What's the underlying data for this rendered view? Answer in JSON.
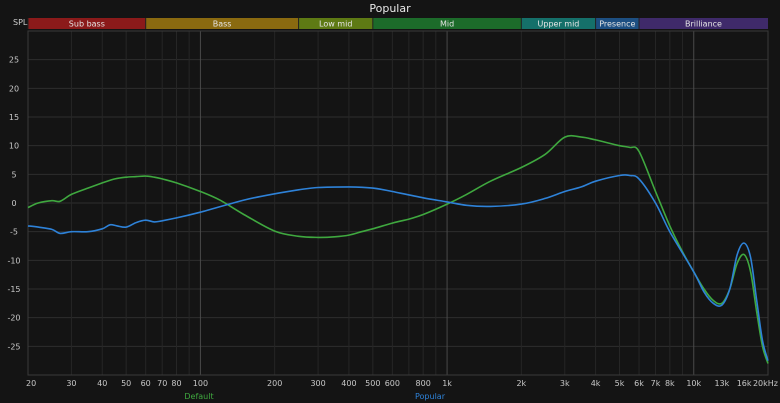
{
  "chart_data": {
    "type": "line",
    "title": "Popular",
    "ylabel": "SPL",
    "xscale": "log",
    "xlim": [
      20,
      20000
    ],
    "ylim": [
      -30,
      30
    ],
    "grid": true,
    "y_ticks": [
      25,
      20,
      15,
      10,
      5,
      0,
      -5,
      -10,
      -15,
      -20,
      -25
    ],
    "x_ticks": [
      {
        "value": 20,
        "label": "20"
      },
      {
        "value": 30,
        "label": "30"
      },
      {
        "value": 40,
        "label": "40"
      },
      {
        "value": 50,
        "label": "50"
      },
      {
        "value": 60,
        "label": "60"
      },
      {
        "value": 70,
        "label": "70"
      },
      {
        "value": 80,
        "label": "80"
      },
      {
        "value": 100,
        "label": "100"
      },
      {
        "value": 200,
        "label": "200"
      },
      {
        "value": 300,
        "label": "300"
      },
      {
        "value": 400,
        "label": "400"
      },
      {
        "value": 500,
        "label": "500"
      },
      {
        "value": 600,
        "label": "600"
      },
      {
        "value": 800,
        "label": "800"
      },
      {
        "value": 1000,
        "label": "1k"
      },
      {
        "value": 2000,
        "label": "2k"
      },
      {
        "value": 3000,
        "label": "3k"
      },
      {
        "value": 4000,
        "label": "4k"
      },
      {
        "value": 5000,
        "label": "5k"
      },
      {
        "value": 6000,
        "label": "6k"
      },
      {
        "value": 7000,
        "label": "7k"
      },
      {
        "value": 8000,
        "label": "8k"
      },
      {
        "value": 10000,
        "label": "10k"
      },
      {
        "value": 13000,
        "label": "13k",
        "dim": true
      },
      {
        "value": 16000,
        "label": "16k",
        "dim": true
      },
      {
        "value": 20000,
        "label": "20kHz"
      }
    ],
    "bands": [
      {
        "label": "Sub bass",
        "from": 20,
        "to": 60,
        "color": "#8b1a1a"
      },
      {
        "label": "Bass",
        "from": 60,
        "to": 250,
        "color": "#8a6a10"
      },
      {
        "label": "Low mid",
        "from": 250,
        "to": 500,
        "color": "#5e7a14"
      },
      {
        "label": "Mid",
        "from": 500,
        "to": 2000,
        "color": "#1c6b2a"
      },
      {
        "label": "Upper mid",
        "from": 2000,
        "to": 4000,
        "color": "#15706a"
      },
      {
        "label": "Presence",
        "from": 4000,
        "to": 6000,
        "color": "#1d4f82"
      },
      {
        "label": "Brilliance",
        "from": 6000,
        "to": 20000,
        "color": "#3f2a6a"
      }
    ],
    "series": [
      {
        "name": "Default",
        "color": "#3fa83f",
        "x": [
          20,
          22,
          25,
          27,
          30,
          35,
          40,
          45,
          50,
          55,
          60,
          65,
          70,
          80,
          100,
          120,
          150,
          200,
          250,
          300,
          350,
          400,
          450,
          500,
          600,
          700,
          800,
          1000,
          1200,
          1500,
          2000,
          2500,
          3000,
          3500,
          4000,
          5000,
          5500,
          6000,
          7000,
          8000,
          9000,
          10000,
          11000,
          12000,
          13000,
          14000,
          15000,
          16000,
          17000,
          18000,
          19000,
          20000
        ],
        "y": [
          -0.8,
          0,
          0.4,
          0.3,
          1.5,
          2.6,
          3.5,
          4.2,
          4.5,
          4.6,
          4.7,
          4.5,
          4.2,
          3.5,
          2.0,
          0.5,
          -2.0,
          -4.9,
          -5.8,
          -6.0,
          -5.9,
          -5.6,
          -5.0,
          -4.5,
          -3.5,
          -2.8,
          -2.0,
          -0.2,
          1.5,
          3.8,
          6.2,
          8.5,
          11.5,
          11.5,
          11.0,
          10.0,
          9.7,
          9.0,
          2.0,
          -4.0,
          -8.5,
          -12.0,
          -15.0,
          -17.0,
          -17.5,
          -15.0,
          -10.5,
          -9.0,
          -12.0,
          -19.0,
          -25.0,
          -28.0
        ]
      },
      {
        "name": "Popular",
        "color": "#2e82d8",
        "x": [
          20,
          22,
          25,
          27,
          30,
          35,
          40,
          43,
          46,
          50,
          55,
          60,
          65,
          70,
          80,
          100,
          150,
          200,
          250,
          300,
          400,
          500,
          600,
          800,
          1000,
          1200,
          1500,
          2000,
          2500,
          3000,
          3500,
          4000,
          5000,
          5500,
          6000,
          7000,
          8000,
          10000,
          11000,
          12000,
          13000,
          14000,
          15000,
          16000,
          17000,
          18000,
          19000,
          20000
        ],
        "y": [
          -4.0,
          -4.2,
          -4.6,
          -5.3,
          -5.0,
          -5.0,
          -4.5,
          -3.8,
          -4.0,
          -4.2,
          -3.4,
          -3.0,
          -3.3,
          -3.1,
          -2.6,
          -1.6,
          0.5,
          1.6,
          2.3,
          2.7,
          2.8,
          2.6,
          2.0,
          0.9,
          0.2,
          -0.4,
          -0.6,
          -0.2,
          0.8,
          2.0,
          2.8,
          3.8,
          4.8,
          4.8,
          4.2,
          0.0,
          -5.0,
          -12.0,
          -15.5,
          -17.5,
          -17.8,
          -15.0,
          -9.0,
          -7.0,
          -9.5,
          -17.0,
          -24.0,
          -27.5
        ]
      }
    ]
  }
}
